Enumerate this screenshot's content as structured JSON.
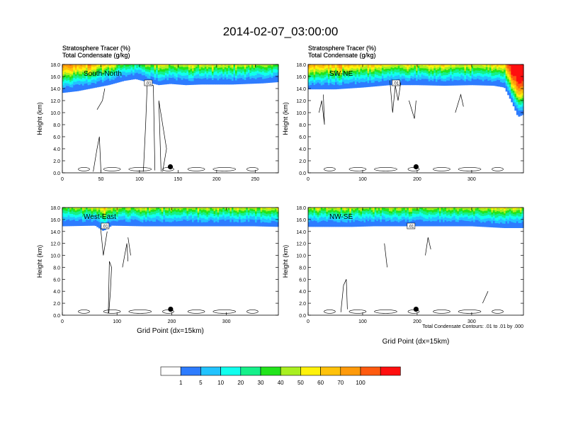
{
  "title": "2014-02-07_03:00:00",
  "palette": [
    "#ffffff",
    "#2e7cff",
    "#22c3ff",
    "#11ffee",
    "#15f08a",
    "#22e41c",
    "#a9ef20",
    "#fff20a",
    "#ffc20a",
    "#ff9a0a",
    "#ff5a0f",
    "#ff0f0f"
  ],
  "colorbar": {
    "labels": [
      "1",
      "5",
      "10",
      "20",
      "30",
      "40",
      "50",
      "60",
      "70",
      "100"
    ]
  },
  "contour_note": "Total Condensate Contours: .01 to .01 by .000",
  "contour_label": ".01",
  "chart_data": [
    {
      "type": "heatmap",
      "panel": "South-North",
      "header_line1": "Stratosphere Tracer   (%)",
      "header_line2": "Total Condensate   (g/kg)",
      "ylabel": "Height (km)",
      "xlabel": "",
      "xlim": [
        0,
        280
      ],
      "ylim": [
        0,
        18
      ],
      "xticks": [
        "0",
        "50",
        "100",
        "150",
        "200",
        "250"
      ],
      "yticks": [
        "0.0",
        "2.0",
        "4.0",
        "6.0",
        "8.0",
        "10.0",
        "12.0",
        "14.0",
        "16.0",
        "18.0"
      ],
      "tracer_base_km": [
        [
          0,
          13.3
        ],
        [
          20,
          13.6
        ],
        [
          40,
          14.1
        ],
        [
          60,
          14.6
        ],
        [
          80,
          15.3
        ],
        [
          95,
          15.6
        ],
        [
          110,
          15.1
        ],
        [
          125,
          14.6
        ],
        [
          140,
          14.8
        ],
        [
          160,
          14.6
        ],
        [
          180,
          14.7
        ],
        [
          200,
          14.7
        ],
        [
          220,
          14.7
        ],
        [
          240,
          14.8
        ],
        [
          260,
          14.9
        ],
        [
          280,
          15.1
        ]
      ],
      "site_marker": {
        "x": 140,
        "y": 1.0
      }
    },
    {
      "type": "heatmap",
      "panel": "SW-NE",
      "header_line1": "Stratosphere Tracer   (%)",
      "header_line2": "Total Condensate   (g/kg)",
      "ylabel": "Height (km)",
      "xlabel": "",
      "xlim": [
        0,
        395
      ],
      "ylim": [
        0,
        18
      ],
      "xticks": [
        "0",
        "100",
        "200",
        "300"
      ],
      "yticks": [
        "0.0",
        "2.0",
        "4.0",
        "6.0",
        "8.0",
        "10.0",
        "12.0",
        "14.0",
        "16.0",
        "18.0"
      ],
      "tracer_base_km": [
        [
          0,
          13.9
        ],
        [
          50,
          13.9
        ],
        [
          100,
          14.2
        ],
        [
          150,
          14.6
        ],
        [
          200,
          14.6
        ],
        [
          250,
          14.5
        ],
        [
          300,
          14.6
        ],
        [
          340,
          14.5
        ],
        [
          360,
          14.2
        ],
        [
          375,
          11.5
        ],
        [
          385,
          9.3
        ],
        [
          395,
          9.7
        ]
      ],
      "site_marker": {
        "x": 198,
        "y": 1.0
      }
    },
    {
      "type": "heatmap",
      "panel": "West-East",
      "header_line1": "Stratosphere Tracer   (%)",
      "header_line2": "Total Condensate   (g/kg)",
      "ylabel": "Height (km)",
      "xlabel": "Grid Point (dx=15km)",
      "xlim": [
        0,
        395
      ],
      "ylim": [
        0,
        18
      ],
      "xticks": [
        "0",
        "100",
        "200",
        "300"
      ],
      "yticks": [
        "0.0",
        "2.0",
        "4.0",
        "6.0",
        "8.0",
        "10.0",
        "12.0",
        "14.0",
        "16.0",
        "18.0"
      ],
      "tracer_base_km": [
        [
          0,
          14.9
        ],
        [
          60,
          15.0
        ],
        [
          75,
          14.1
        ],
        [
          90,
          15.0
        ],
        [
          150,
          14.9
        ],
        [
          200,
          14.9
        ],
        [
          250,
          14.9
        ],
        [
          300,
          14.9
        ],
        [
          350,
          14.9
        ],
        [
          395,
          14.8
        ]
      ],
      "site_marker": {
        "x": 198,
        "y": 1.0
      }
    },
    {
      "type": "heatmap",
      "panel": "NW-SE",
      "header_line1": "Stratosphere Tracer   (%)",
      "header_line2": "Total Condensate   (g/kg)",
      "ylabel": "Height (km)",
      "xlabel": "Grid Point (dx=15km)",
      "xlim": [
        0,
        395
      ],
      "ylim": [
        0,
        18
      ],
      "xticks": [
        "0",
        "100",
        "200",
        "300"
      ],
      "yticks": [
        "0.0",
        "2.0",
        "4.0",
        "6.0",
        "8.0",
        "10.0",
        "12.0",
        "14.0",
        "16.0",
        "18.0"
      ],
      "tracer_base_km": [
        [
          0,
          14.8
        ],
        [
          80,
          14.8
        ],
        [
          120,
          14.9
        ],
        [
          200,
          14.9
        ],
        [
          240,
          14.9
        ],
        [
          300,
          14.9
        ],
        [
          360,
          14.6
        ],
        [
          395,
          14.6
        ]
      ],
      "site_marker": {
        "x": 198,
        "y": 1.0
      }
    }
  ]
}
